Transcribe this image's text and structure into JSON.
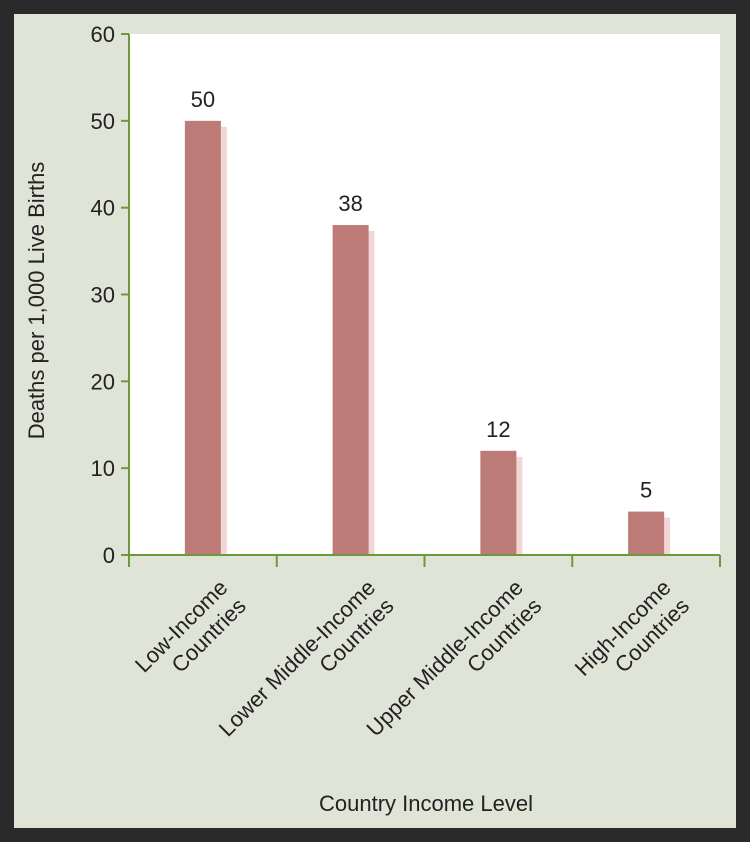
{
  "chart_data": {
    "type": "bar",
    "xlabel": "Country Income Level",
    "ylabel": "Deaths per 1,000 Live Births",
    "categories": [
      [
        "Low-Income",
        "Countries"
      ],
      [
        "Lower Middle-Income",
        "Countries"
      ],
      [
        "Upper Middle-Income",
        "Countries"
      ],
      [
        "High-Income",
        "Countries"
      ]
    ],
    "values": [
      50,
      38,
      12,
      5
    ],
    "data_labels": [
      "50",
      "38",
      "12",
      "5"
    ],
    "ylim": [
      0,
      60
    ],
    "yticks": [
      0,
      10,
      20,
      30,
      40,
      50,
      60
    ],
    "ytick_labels": [
      "0",
      "10",
      "20",
      "30",
      "40",
      "50",
      "60"
    ],
    "grid": false,
    "colors": {
      "bar": "#bd7b78",
      "bar_shadow": "#f2d6d6",
      "axis": "#6a9a3a",
      "plot_bg": "#ffffff",
      "frame_bg": "#dfe4d6"
    }
  }
}
